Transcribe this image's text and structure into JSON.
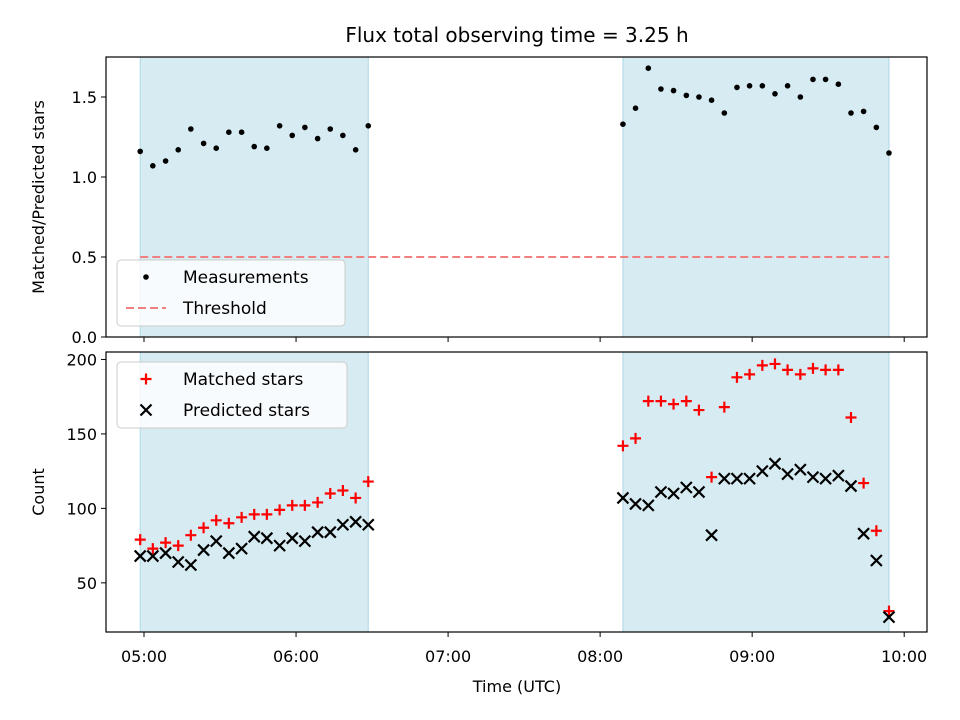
{
  "chart_data": {
    "type": "scatter",
    "title": "Flux total observing time = 3.25 h",
    "xlabel": "Time (UTC)",
    "xticks": [
      "05:00",
      "06:00",
      "07:00",
      "08:00",
      "09:00",
      "10:00"
    ],
    "xlim_hours": [
      4.75,
      10.15
    ],
    "observing_windows": [
      [
        4.975,
        6.475
      ],
      [
        8.15,
        9.9
      ]
    ],
    "window_color": "#add8e6",
    "panels": [
      {
        "ylabel": "Matched/Predicted stars",
        "ylim": [
          0,
          1.75
        ],
        "yticks": [
          "0.0",
          "0.5",
          "1.0",
          "1.5"
        ],
        "legend_location": "lower-left",
        "series": [
          {
            "name": "Measurements",
            "marker": "dot",
            "color": "#000000",
            "x": [
              4.975,
              5.058,
              5.142,
              5.225,
              5.308,
              5.392,
              5.475,
              5.558,
              5.642,
              5.725,
              5.808,
              5.892,
              5.975,
              6.058,
              6.142,
              6.225,
              6.308,
              6.392,
              6.475,
              8.15,
              8.233,
              8.317,
              8.4,
              8.483,
              8.567,
              8.65,
              8.733,
              8.817,
              8.9,
              8.983,
              9.067,
              9.15,
              9.233,
              9.317,
              9.4,
              9.483,
              9.567,
              9.65,
              9.733,
              9.817,
              9.9
            ],
            "y": [
              1.16,
              1.07,
              1.1,
              1.17,
              1.3,
              1.21,
              1.18,
              1.28,
              1.28,
              1.19,
              1.18,
              1.32,
              1.26,
              1.31,
              1.24,
              1.3,
              1.26,
              1.17,
              1.32,
              1.33,
              1.43,
              1.68,
              1.55,
              1.54,
              1.51,
              1.5,
              1.48,
              1.4,
              1.56,
              1.57,
              1.57,
              1.52,
              1.57,
              1.5,
              1.61,
              1.61,
              1.58,
              1.4,
              1.41,
              1.31,
              1.15
            ]
          },
          {
            "name": "Threshold",
            "marker": "dashed-line",
            "color": "#f08080",
            "x": [
              4.975,
              9.9
            ],
            "y": [
              0.5,
              0.5
            ]
          }
        ]
      },
      {
        "ylabel": "Count",
        "ylim": [
          17,
          205
        ],
        "yticks": [
          "50",
          "100",
          "150",
          "200"
        ],
        "legend_location": "upper-left",
        "series": [
          {
            "name": "Matched stars",
            "marker": "plus",
            "color": "#ff0000",
            "x": [
              4.975,
              5.058,
              5.142,
              5.225,
              5.308,
              5.392,
              5.475,
              5.558,
              5.642,
              5.725,
              5.808,
              5.892,
              5.975,
              6.058,
              6.142,
              6.225,
              6.308,
              6.392,
              6.475,
              8.15,
              8.233,
              8.317,
              8.4,
              8.483,
              8.567,
              8.65,
              8.733,
              8.817,
              8.9,
              8.983,
              9.067,
              9.15,
              9.233,
              9.317,
              9.4,
              9.483,
              9.567,
              9.65,
              9.733,
              9.817,
              9.9
            ],
            "y": [
              79,
              73,
              77,
              75,
              82,
              87,
              92,
              90,
              94,
              96,
              96,
              99,
              102,
              102,
              104,
              110,
              112,
              107,
              118,
              142,
              147,
              172,
              172,
              170,
              172,
              166,
              121,
              168,
              188,
              190,
              196,
              197,
              193,
              190,
              194,
              193,
              193,
              161,
              117,
              85,
              31
            ]
          },
          {
            "name": "Predicted stars",
            "marker": "x",
            "color": "#000000",
            "x": [
              4.975,
              5.058,
              5.142,
              5.225,
              5.308,
              5.392,
              5.475,
              5.558,
              5.642,
              5.725,
              5.808,
              5.892,
              5.975,
              6.058,
              6.142,
              6.225,
              6.308,
              6.392,
              6.475,
              8.15,
              8.233,
              8.317,
              8.4,
              8.483,
              8.567,
              8.65,
              8.733,
              8.817,
              8.9,
              8.983,
              9.067,
              9.15,
              9.233,
              9.317,
              9.4,
              9.483,
              9.567,
              9.65,
              9.733,
              9.817,
              9.9
            ],
            "y": [
              68,
              68,
              70,
              64,
              62,
              72,
              78,
              70,
              73,
              81,
              80,
              75,
              80,
              78,
              84,
              84,
              89,
              91,
              89,
              107,
              103,
              102,
              111,
              110,
              114,
              111,
              82,
              120,
              120,
              120,
              125,
              130,
              123,
              126,
              121,
              120,
              122,
              115,
              83,
              65,
              27
            ]
          }
        ]
      }
    ]
  }
}
